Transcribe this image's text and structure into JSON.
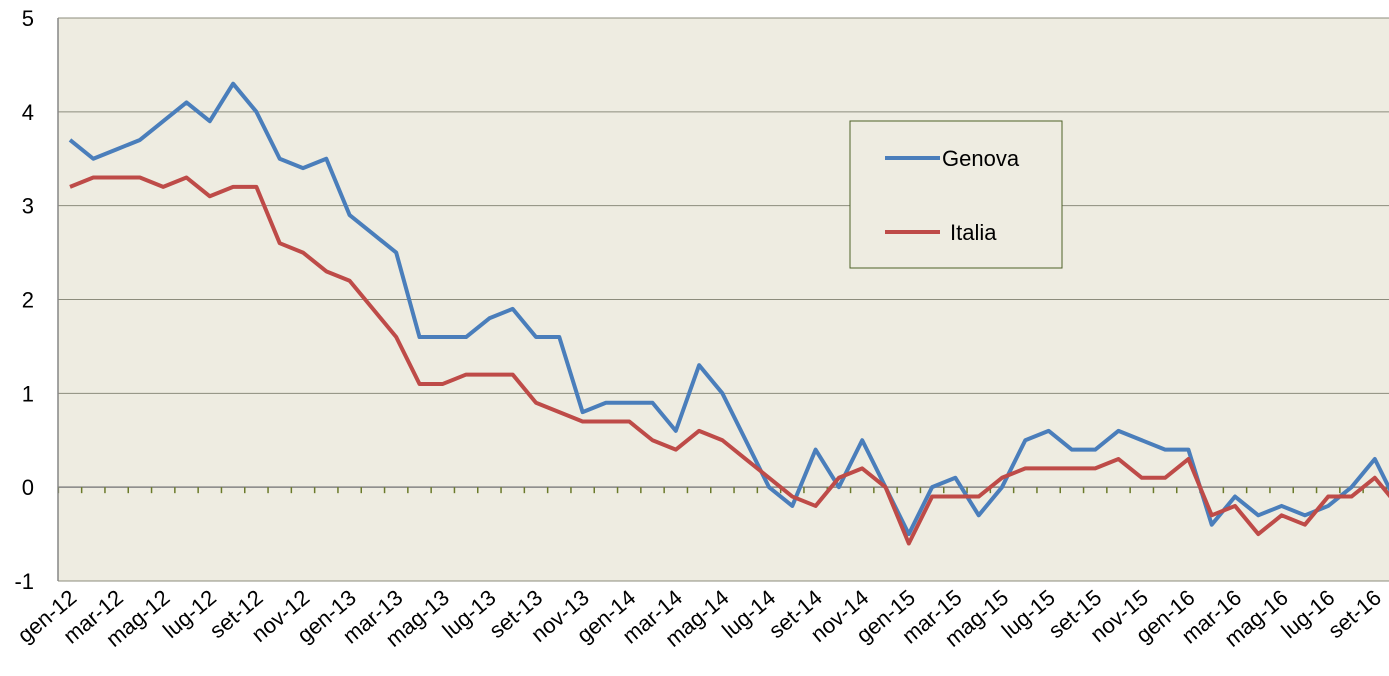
{
  "chart_data": {
    "type": "line",
    "categories": [
      "gen-12",
      null,
      "mar-12",
      null,
      "mag-12",
      null,
      "lug-12",
      null,
      "set-12",
      null,
      "nov-12",
      null,
      "gen-13",
      null,
      "mar-13",
      null,
      "mag-13",
      null,
      "lug-13",
      null,
      "set-13",
      null,
      "nov-13",
      null,
      "gen-14",
      null,
      "mar-14",
      null,
      "mag-14",
      null,
      "lug-14",
      null,
      "set-14",
      null,
      "nov-14",
      null,
      "gen-15",
      null,
      "mar-15",
      null,
      "mag-15",
      null,
      "lug-15",
      null,
      "set-15",
      null,
      "nov-15",
      null,
      "gen-16",
      null,
      "mar-16",
      null,
      "mag-16",
      null,
      "lug-16",
      null,
      "set-16",
      null
    ],
    "series": [
      {
        "name": "Genova",
        "color": "#4a7ebb",
        "values": [
          3.7,
          3.5,
          3.6,
          3.7,
          3.9,
          4.1,
          3.9,
          4.3,
          4.0,
          3.5,
          3.4,
          3.5,
          2.9,
          2.7,
          2.5,
          1.6,
          1.6,
          1.6,
          1.8,
          1.9,
          1.6,
          1.6,
          0.8,
          0.9,
          0.9,
          0.9,
          0.6,
          1.3,
          1.0,
          0.5,
          0.0,
          -0.2,
          0.4,
          0.0,
          0.5,
          0.0,
          -0.5,
          0.0,
          0.1,
          -0.3,
          0.0,
          0.5,
          0.6,
          0.4,
          0.4,
          0.6,
          0.5,
          0.4,
          0.4,
          -0.4,
          -0.1,
          -0.3,
          -0.2,
          -0.3,
          -0.2,
          0.0,
          0.3,
          -0.2
        ]
      },
      {
        "name": "Italia",
        "color": "#be4b48",
        "values": [
          3.2,
          3.3,
          3.3,
          3.3,
          3.2,
          3.3,
          3.1,
          3.2,
          3.2,
          2.6,
          2.5,
          2.3,
          2.2,
          1.9,
          1.6,
          1.1,
          1.1,
          1.2,
          1.2,
          1.2,
          0.9,
          0.8,
          0.7,
          0.7,
          0.7,
          0.5,
          0.4,
          0.6,
          0.5,
          0.3,
          0.1,
          -0.1,
          -0.2,
          0.1,
          0.2,
          0.0,
          -0.6,
          -0.1,
          -0.1,
          -0.1,
          0.1,
          0.2,
          0.2,
          0.2,
          0.2,
          0.3,
          0.1,
          0.1,
          0.3,
          -0.3,
          -0.2,
          -0.5,
          -0.3,
          -0.4,
          -0.1,
          -0.1,
          0.1,
          -0.2
        ]
      }
    ],
    "ylim": [
      -1,
      5
    ],
    "yticks": [
      -1,
      0,
      1,
      2,
      3,
      4,
      5
    ],
    "grid": true,
    "legend": "upper right"
  }
}
